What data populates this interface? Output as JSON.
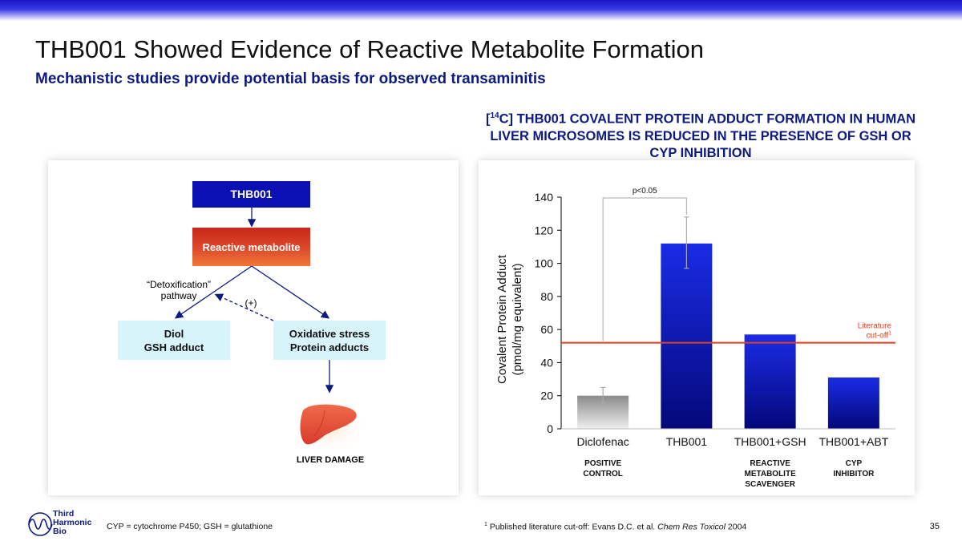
{
  "header": {
    "title": "THB001 Showed Evidence of Reactive Metabolite Formation",
    "subtitle": "Mechanistic studies provide potential basis for observed transaminitis",
    "chart_heading_prefix": "[",
    "chart_heading_sup": "14",
    "chart_heading_rest": "C] THB001 COVALENT PROTEIN ADDUCT FORMATION IN HUMAN LIVER MICROSOMES IS REDUCED IN THE PRESENCE OF GSH OR CYP INHIBITION"
  },
  "diagram": {
    "thb_label": "THB001",
    "reactive_label": "Reactive metabolite",
    "detox_line1": "“Detoxification”",
    "detox_line2": "pathway",
    "plus_label": "(+)",
    "diol_line1": "Diol",
    "diol_line2": "GSH adduct",
    "ox_line1": "Oxidative stress",
    "ox_line2": "Protein adducts",
    "liver_label": "LIVER DAMAGE",
    "liver_icon": "liver-icon",
    "colors": {
      "thb": "#0a10b4",
      "reactive": "#d8402a",
      "outcome": "#d8f4fb",
      "arrow": "#0d1a80"
    }
  },
  "chart_data": {
    "type": "bar",
    "ylabel_line1": "Covalent Protein Adduct",
    "ylabel_line2": "(pmol/mg equivalent)",
    "ylim": [
      0,
      140
    ],
    "yticks": [
      0,
      20,
      40,
      60,
      80,
      100,
      120,
      140
    ],
    "categories": [
      "Diclofenac",
      "THB001",
      "THB001+GSH",
      "THB001+ABT"
    ],
    "values": [
      20,
      112,
      57,
      31
    ],
    "error_low": [
      16,
      97,
      null,
      null
    ],
    "error_high": [
      25,
      128,
      null,
      null
    ],
    "sublabels": [
      [
        "POSITIVE",
        "CONTROL"
      ],
      [],
      [
        "REACTIVE",
        "METABOLITE",
        "SCAVENGER"
      ],
      [
        "CYP",
        "INHIBITOR"
      ]
    ],
    "reference_line": {
      "value": 52,
      "label_line1": "Literature",
      "label_line2": "cut-off",
      "label_sup": "1",
      "color": "#e0401e"
    },
    "significance": {
      "from": 0,
      "to": 1,
      "label": "p<0.05"
    },
    "colors": {
      "control": "#aaaaaa",
      "bar": "#0a10b4"
    }
  },
  "footer": {
    "left": "CYP = cytochrome P450; GSH = glutathione",
    "right_sup": "1",
    "right_text": " Published literature cut-off: Evans D.C. et al. ",
    "right_italic": "Chem Res Toxicol",
    "right_year": " 2004",
    "page_number": "35"
  },
  "logo": {
    "line1": "Third",
    "line2": "Harmonic",
    "line3": "Bio",
    "icon": "wave-logo-icon"
  }
}
